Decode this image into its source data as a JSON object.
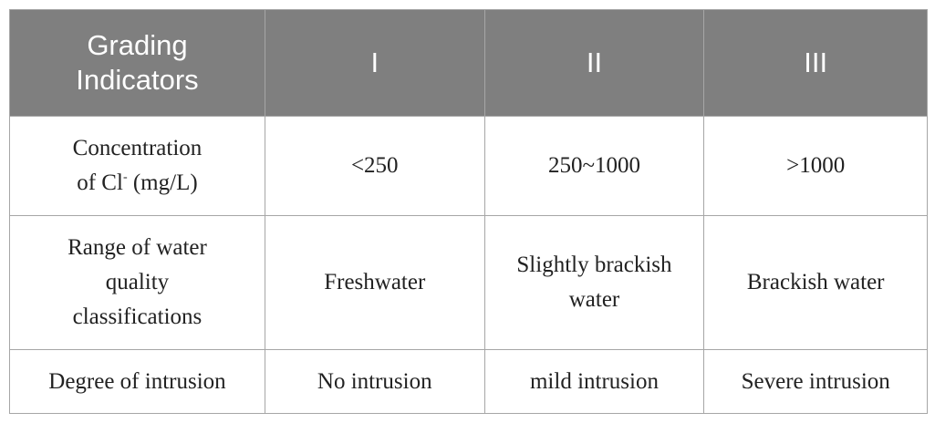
{
  "table": {
    "header": [
      "Grading Indicators",
      "I",
      "II",
      "III"
    ],
    "rows": [
      [
        {
          "text": "Concentration of Cl",
          "sup": "-",
          "unit": "(mg/L)"
        },
        "<250",
        "250~1000",
        ">1000"
      ],
      [
        "Range of water quality classifications",
        "Freshwater",
        "Slightly brackish water",
        "Brackish water"
      ],
      [
        "Degree of intrusion",
        "No intrusion",
        "mild intrusion",
        "Severe intrusion"
      ]
    ]
  }
}
